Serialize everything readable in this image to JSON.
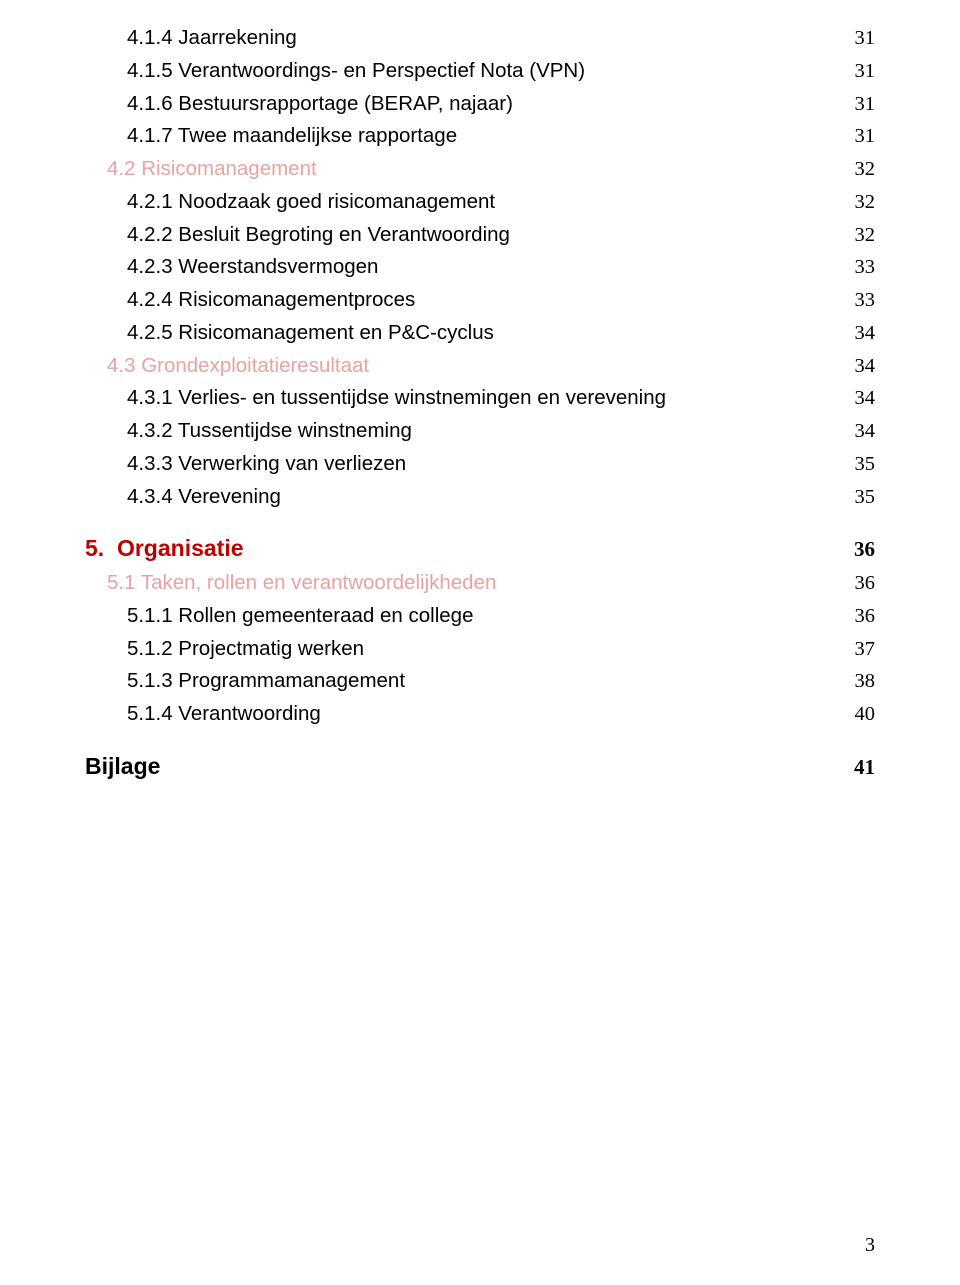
{
  "colors": {
    "heading_red": "#c00000",
    "subsection_light_red": "#e6a3a3",
    "body_text": "#000000",
    "page_number_serif": "Times New Roman, Times, serif"
  },
  "toc": [
    {
      "level": 3,
      "label": "4.1.4 Jaarrekening",
      "page": "31"
    },
    {
      "level": 3,
      "label": "4.1.5 Verantwoordings- en Perspectief Nota (VPN)",
      "page": "31"
    },
    {
      "level": 3,
      "label": "4.1.6 Bestuursrapportage (BERAP, najaar)",
      "page": "31"
    },
    {
      "level": 3,
      "label": "4.1.7 Twee maandelijkse rapportage",
      "page": "31"
    },
    {
      "level": 2,
      "label": "4.2 Risicomanagement",
      "page": "32"
    },
    {
      "level": 3,
      "label": "4.2.1 Noodzaak goed risicomanagement",
      "page": "32"
    },
    {
      "level": 3,
      "label": "4.2.2 Besluit Begroting en Verantwoording",
      "page": "32"
    },
    {
      "level": 3,
      "label": "4.2.3 Weerstandsvermogen",
      "page": "33"
    },
    {
      "level": 3,
      "label": "4.2.4 Risicomanagementproces",
      "page": "33"
    },
    {
      "level": 3,
      "label": "4.2.5 Risicomanagement en P&C-cyclus",
      "page": "34"
    },
    {
      "level": 2,
      "label": "4.3 Grondexploitatieresultaat",
      "page": "34"
    },
    {
      "level": 3,
      "label": "4.3.1 Verlies- en tussentijdse winstnemingen en verevening",
      "page": "34"
    },
    {
      "level": 3,
      "label": "4.3.2 Tussentijdse winstneming",
      "page": "34"
    },
    {
      "level": 3,
      "label": "4.3.3 Verwerking van verliezen",
      "page": "35"
    },
    {
      "level": 3,
      "label": "4.3.4 Verevening",
      "page": "35"
    },
    {
      "spacer": "md"
    },
    {
      "level": 1,
      "label": "5.  Organisatie",
      "page": "36"
    },
    {
      "level": 2,
      "label": "5.1 Taken, rollen en verantwoordelijkheden",
      "page": "36"
    },
    {
      "level": 3,
      "label": "5.1.1 Rollen gemeenteraad en college",
      "page": "36"
    },
    {
      "level": 3,
      "label": "5.1.2 Projectmatig werken",
      "page": "37"
    },
    {
      "level": 3,
      "label": "5.1.3 Programmamanagement",
      "page": "38"
    },
    {
      "level": 3,
      "label": "5.1.4 Verantwoording",
      "page": "40"
    },
    {
      "spacer": "md"
    },
    {
      "level": 0,
      "label": "Bijlage",
      "page": "41"
    }
  ],
  "page_number": "3"
}
